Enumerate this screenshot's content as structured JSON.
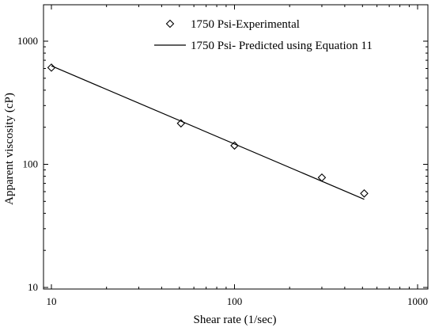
{
  "chart_data": {
    "type": "scatter",
    "title": "",
    "xlabel": "Shear rate (1/sec)",
    "ylabel": "Apparent viscosity (cP)",
    "xscale": "log",
    "yscale": "log",
    "xlim": [
      8,
      1000
    ],
    "ylim": [
      10,
      2000
    ],
    "x_ticks": [
      10,
      100,
      1000
    ],
    "x_tick_labels": [
      "10",
      "100",
      "1000"
    ],
    "y_ticks": [
      10,
      100,
      1000
    ],
    "y_tick_labels": [
      "10",
      "100",
      "1000"
    ],
    "grid": false,
    "legend_position": "top-center",
    "series": [
      {
        "name": "1750 Psi-Experimental",
        "kind": "marker",
        "marker": "diamond",
        "x": [
          10,
          51,
          100,
          300,
          511
        ],
        "y": [
          610,
          215,
          142,
          78,
          58
        ]
      },
      {
        "name": "1750 Psi- Predicted using Equation 11",
        "kind": "line",
        "x": [
          10,
          511
        ],
        "y": [
          630,
          52
        ]
      }
    ]
  }
}
